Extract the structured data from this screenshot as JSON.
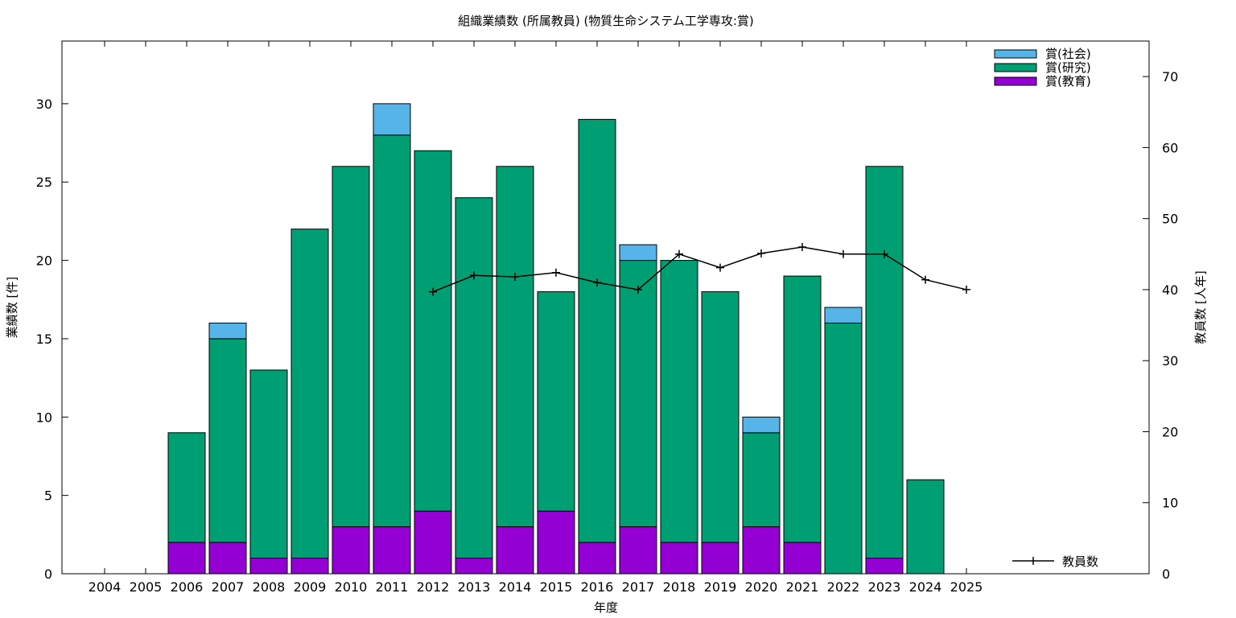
{
  "chart_data": {
    "type": "bar",
    "title": "組織業績数 (所属教員) (物質生命システム工学専攻:賞)",
    "xlabel": "年度",
    "ylabel": "業績数 [件]",
    "y2label": "教員数 [人年]",
    "categories": [
      "2004",
      "2005",
      "2006",
      "2007",
      "2008",
      "2009",
      "2010",
      "2011",
      "2012",
      "2013",
      "2014",
      "2015",
      "2016",
      "2017",
      "2018",
      "2019",
      "2020",
      "2021",
      "2022",
      "2023",
      "2024",
      "2025"
    ],
    "stacked": true,
    "ylim": [
      0,
      34
    ],
    "y2lim": [
      0,
      75
    ],
    "yticks": [
      0,
      5,
      10,
      15,
      20,
      25,
      30
    ],
    "y2ticks": [
      0,
      10,
      20,
      30,
      40,
      50,
      60,
      70
    ],
    "grid": false,
    "legend_position": "top-right",
    "series": [
      {
        "name": "賞(教育)",
        "color": "#9400d3",
        "values": [
          0,
          0,
          2,
          2,
          1,
          1,
          3,
          3,
          4,
          1,
          3,
          4,
          2,
          3,
          2,
          2,
          3,
          2,
          0,
          1,
          0,
          0
        ]
      },
      {
        "name": "賞(研究)",
        "color": "#009e73",
        "values": [
          0,
          0,
          7,
          13,
          12,
          21,
          23,
          25,
          23,
          23,
          23,
          14,
          27,
          17,
          18,
          16,
          6,
          17,
          16,
          25,
          6,
          0
        ]
      },
      {
        "name": "賞(社会)",
        "color": "#56b4e9",
        "values": [
          0,
          0,
          0,
          1,
          0,
          0,
          0,
          2,
          0,
          0,
          0,
          0,
          0,
          1,
          0,
          0,
          1,
          0,
          1,
          0,
          0,
          0
        ]
      }
    ],
    "line_series": {
      "name": "教員数",
      "color": "#000000",
      "axis": "right",
      "x": [
        "2012",
        "2013",
        "2014",
        "2015",
        "2016",
        "2017",
        "2018",
        "2019",
        "2020",
        "2021",
        "2022",
        "2023",
        "2024",
        "2025"
      ],
      "values": [
        39.7,
        42,
        41.8,
        42.4,
        41,
        40,
        45,
        43.1,
        45.1,
        46,
        45,
        45,
        41.4,
        40
      ]
    }
  }
}
